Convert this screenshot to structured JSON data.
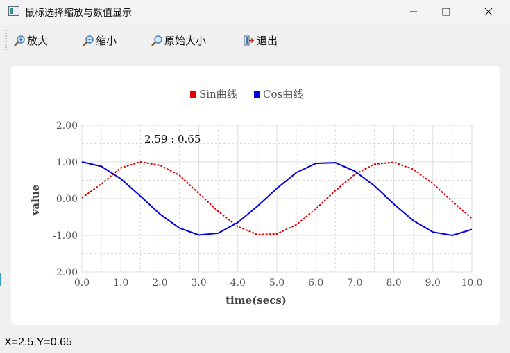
{
  "window": {
    "title": "鼠标选择缩放与数值显示",
    "controls": {
      "minimize": "—",
      "maximize": "☐",
      "close": "✕"
    }
  },
  "toolbar": {
    "items": [
      {
        "label": "放大",
        "icon": "zoom-in-icon"
      },
      {
        "label": "缩小",
        "icon": "zoom-out-icon"
      },
      {
        "label": "原始大小",
        "icon": "zoom-reset-icon"
      },
      {
        "label": "退出",
        "icon": "exit-icon"
      }
    ]
  },
  "chart": {
    "cursor_readout": "2.59 : 0.65",
    "colors": {
      "sin": "#e00000",
      "cos": "#0000dd",
      "grid": "#dcdcdc",
      "axis_text": "#555555"
    }
  },
  "chart_data": {
    "type": "line",
    "title": "",
    "xlabel": "time(secs)",
    "ylabel": "value",
    "xlim": [
      0,
      10
    ],
    "ylim": [
      -2,
      2
    ],
    "x_ticks": [
      "0.0",
      "1.0",
      "2.0",
      "3.0",
      "4.0",
      "5.0",
      "6.0",
      "7.0",
      "8.0",
      "9.0",
      "10.0"
    ],
    "y_ticks": [
      "2.00",
      "1.00",
      "0.00",
      "-1.00",
      "-2.00"
    ],
    "grid": true,
    "legend_position": "top-center",
    "series": [
      {
        "name": "Sin曲线",
        "style": "dotted",
        "x": [
          0,
          0.5,
          1,
          1.5,
          2,
          2.5,
          3,
          3.5,
          4,
          4.5,
          5,
          5.5,
          6,
          6.5,
          7,
          7.5,
          8,
          8.5,
          9,
          9.5,
          10
        ],
        "y": [
          0.02,
          0.4,
          0.84,
          1.0,
          0.91,
          0.64,
          0.14,
          -0.35,
          -0.76,
          -0.98,
          -0.96,
          -0.71,
          -0.28,
          0.22,
          0.66,
          0.94,
          0.99,
          0.8,
          0.41,
          -0.08,
          -0.54
        ]
      },
      {
        "name": "Cos曲线",
        "style": "solid",
        "x": [
          0,
          0.5,
          1,
          1.5,
          2,
          2.5,
          3,
          3.5,
          4,
          4.5,
          5,
          5.5,
          6,
          6.5,
          7,
          7.5,
          8,
          8.5,
          9,
          9.5,
          10
        ],
        "y": [
          1.0,
          0.88,
          0.54,
          0.07,
          -0.42,
          -0.8,
          -0.99,
          -0.94,
          -0.65,
          -0.21,
          0.28,
          0.71,
          0.96,
          0.98,
          0.75,
          0.35,
          -0.15,
          -0.6,
          -0.91,
          -1.0,
          -0.84
        ]
      }
    ]
  },
  "status": {
    "text": "X=2.5,Y=0.65"
  }
}
